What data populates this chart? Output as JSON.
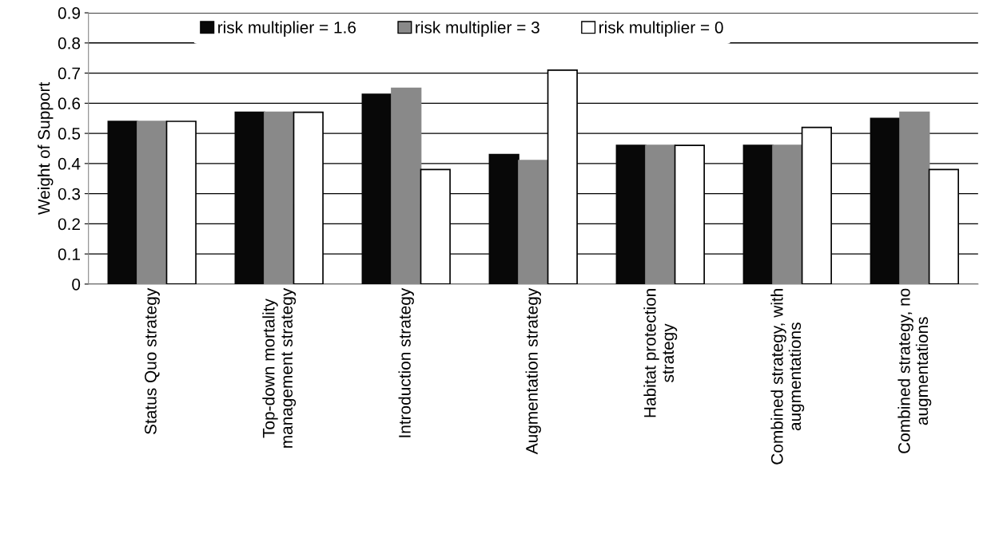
{
  "chart_data": {
    "type": "bar",
    "ylabel": "Weight of Support",
    "categories": [
      "Status Quo strategy",
      "Top-down mortality\nmanagement strategy",
      "Introduction strategy",
      "Augmentation strategy",
      "Habitat protection\nstrategy",
      "Combined strategy, with\naugmentations",
      "Combined strategy, no\naugmentations"
    ],
    "series": [
      {
        "name": "risk multiplier = 1.6",
        "color": "#080808",
        "values": [
          0.54,
          0.57,
          0.63,
          0.43,
          0.46,
          0.46,
          0.55
        ]
      },
      {
        "name": "risk multiplier = 3",
        "color": "#898989",
        "values": [
          0.54,
          0.57,
          0.65,
          0.41,
          0.46,
          0.46,
          0.57
        ]
      },
      {
        "name": "risk multiplier = 0",
        "color": "#ffffff",
        "values": [
          0.54,
          0.57,
          0.38,
          0.71,
          0.46,
          0.52,
          0.38
        ]
      }
    ],
    "ylim": [
      0,
      0.9
    ],
    "yticks": [
      0,
      0.1,
      0.2,
      0.3,
      0.4,
      0.5,
      0.6,
      0.7,
      0.8,
      0.9
    ],
    "grid": "y",
    "legend": "top"
  }
}
